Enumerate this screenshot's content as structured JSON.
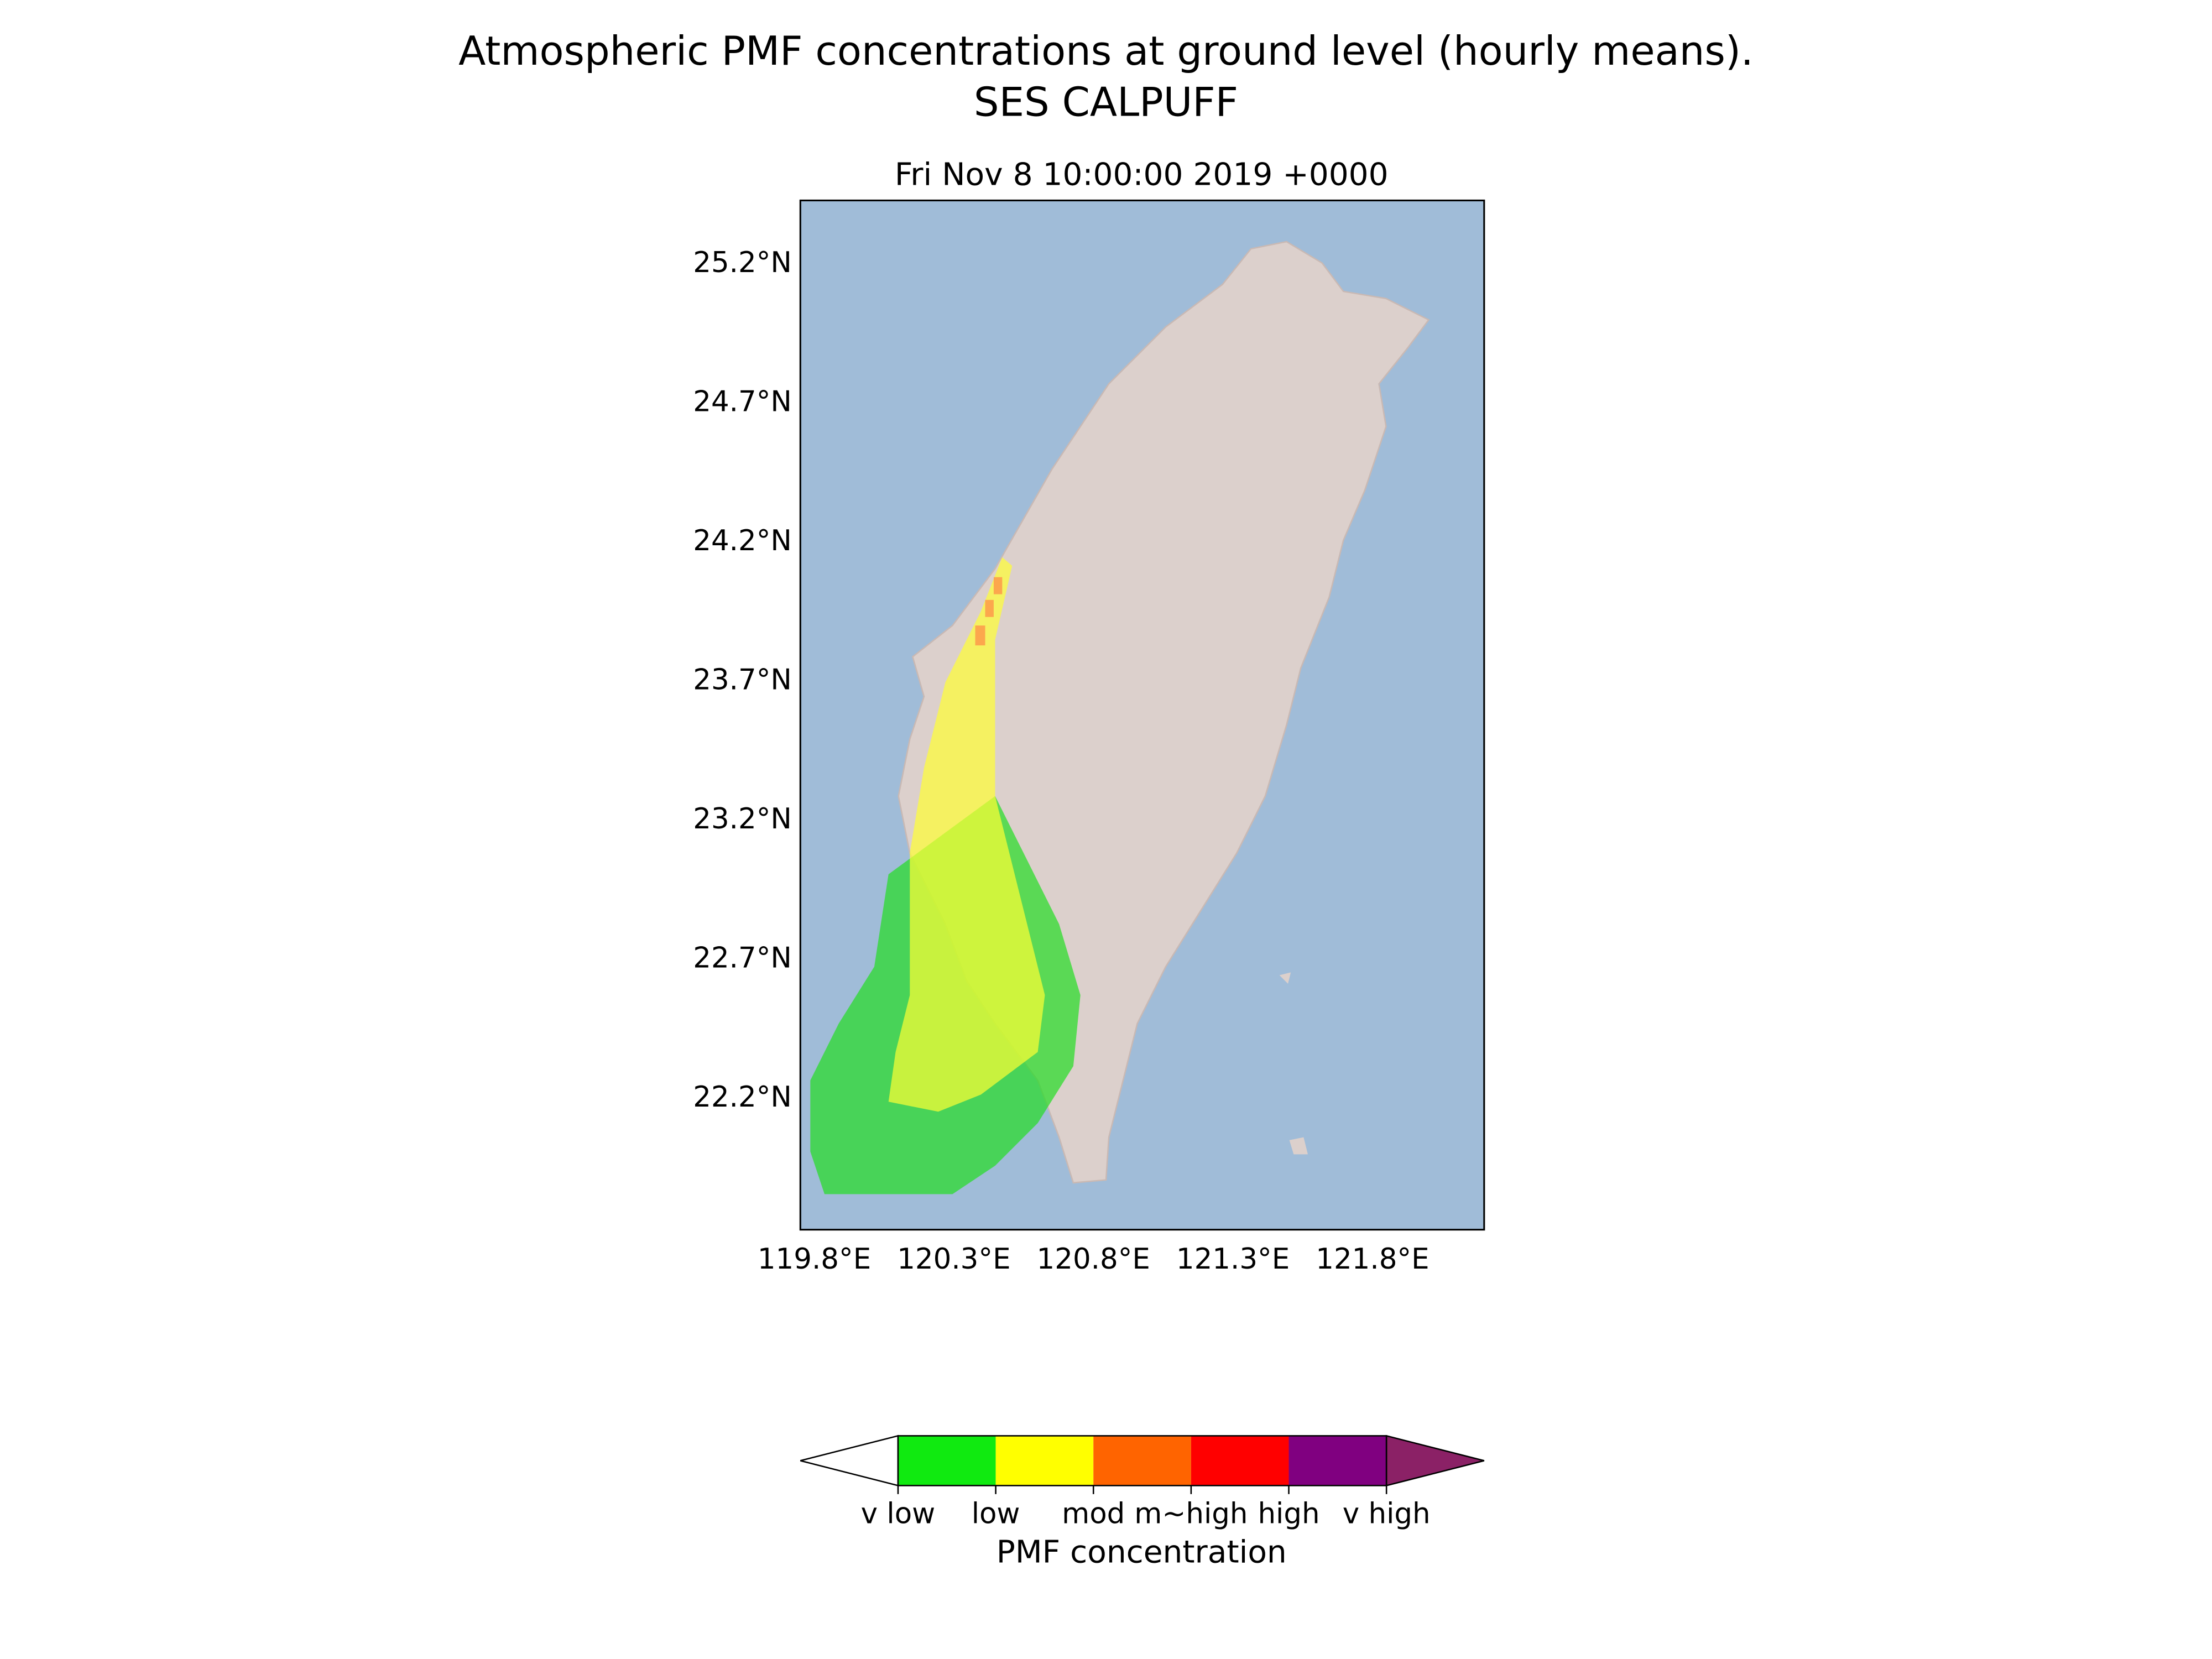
{
  "map": {
    "title": "Atmospheric PMF concentrations at ground level (hourly means).",
    "subtitle": "SES CALPUFF",
    "date": "Fri Nov  8 10:00:00 2019 +0000",
    "xlim": [
      119.75,
      122.2
    ],
    "ylim": [
      21.73,
      25.43
    ],
    "xticks": [
      {
        "value": 119.8,
        "label": "119.8°E"
      },
      {
        "value": 120.3,
        "label": "120.3°E"
      },
      {
        "value": 120.8,
        "label": "120.8°E"
      },
      {
        "value": 121.3,
        "label": "121.3°E"
      },
      {
        "value": 121.8,
        "label": "121.8°E"
      }
    ],
    "yticks": [
      {
        "value": 25.2,
        "label": "25.2°N"
      },
      {
        "value": 24.7,
        "label": "24.7°N"
      },
      {
        "value": 24.2,
        "label": "24.2°N"
      },
      {
        "value": 23.7,
        "label": "23.7°N"
      },
      {
        "value": 23.2,
        "label": "23.2°N"
      },
      {
        "value": 22.7,
        "label": "22.7°N"
      },
      {
        "value": 22.2,
        "label": "22.2°N"
      }
    ],
    "colorbar": {
      "title": "PMF concentration",
      "labels": [
        "v low",
        "low",
        "mod",
        "m~high",
        "high",
        "v high"
      ],
      "colors": [
        "#ffffff",
        "#10ea10",
        "#ffff00",
        "#ff6400",
        "#ff0000",
        "#800080",
        "#8b2166"
      ]
    }
  }
}
